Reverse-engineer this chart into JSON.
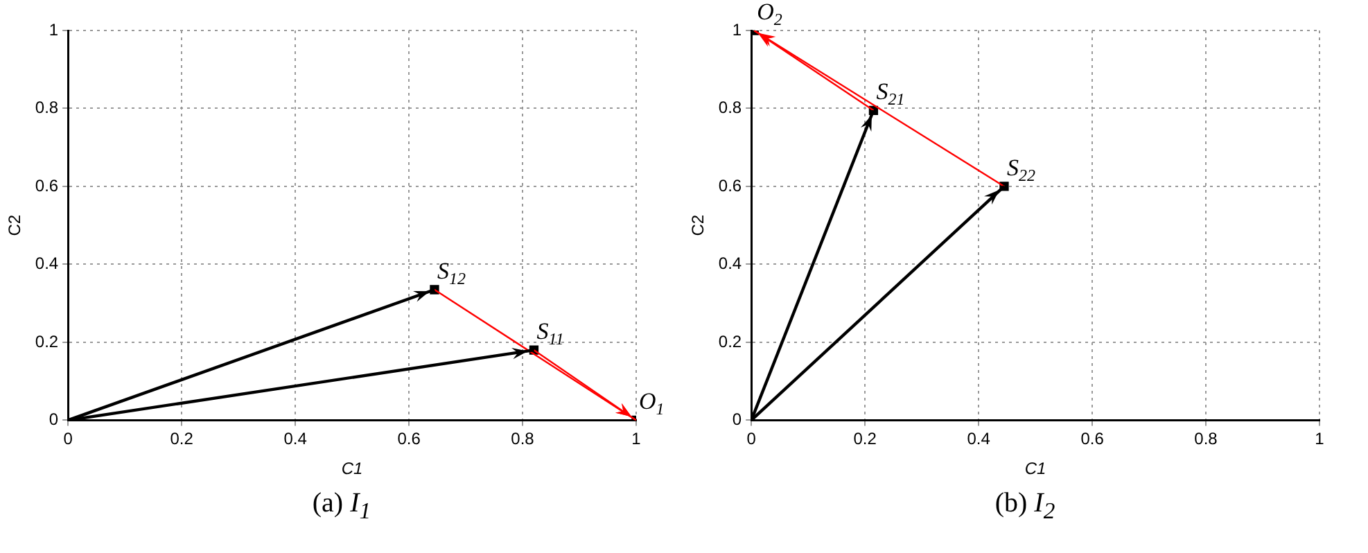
{
  "chart_data": [
    {
      "type": "line",
      "xlabel": "C1",
      "ylabel": "C2",
      "xlim": [
        0,
        1
      ],
      "ylim": [
        0,
        1
      ],
      "xticks": [
        0,
        0.2,
        0.4,
        0.6,
        0.8,
        1
      ],
      "yticks": [
        0,
        0.2,
        0.4,
        0.6,
        0.8,
        1
      ],
      "grid": true,
      "legend": false,
      "line_style": "solid",
      "series": [
        {
          "type": "line",
          "color": "#000000",
          "marker": "none",
          "x": [
            0,
            0.645
          ],
          "values": [
            0,
            0.335
          ]
        },
        {
          "type": "line",
          "color": "#000000",
          "marker": "none",
          "x": [
            0,
            0.82
          ],
          "values": [
            0,
            0.18
          ]
        },
        {
          "type": "line",
          "color": "#ff0000",
          "marker": "none",
          "x": [
            0.645,
            1
          ],
          "values": [
            0.335,
            0
          ]
        },
        {
          "type": "line",
          "color": "#ff0000",
          "marker": "none",
          "x": [
            0.82,
            1
          ],
          "values": [
            0.18,
            0
          ]
        },
        {
          "type": "scatter",
          "color": "#000000",
          "marker": "square",
          "x": [
            0.645,
            0.82,
            1
          ],
          "values": [
            0.335,
            0.18,
            0
          ]
        }
      ],
      "annotations": [
        {
          "text": "S$_{12}$",
          "x": 0.645,
          "y": 0.335
        },
        {
          "text": "S$_{11}$",
          "x": 0.82,
          "y": 0.18
        },
        {
          "text": "O$_{1}$",
          "x": 1,
          "y": 0
        },
        "(a) I$_{1}$"
      ]
    },
    {
      "type": "line",
      "xlabel": "C1",
      "ylabel": "C2",
      "xlim": [
        0,
        1
      ],
      "ylim": [
        0,
        1
      ],
      "xticks": [
        0,
        0.2,
        0.4,
        0.6,
        0.8,
        1
      ],
      "yticks": [
        0,
        0.2,
        0.4,
        0.6,
        0.8,
        1
      ],
      "grid": true,
      "legend": false,
      "line_style": "solid",
      "series": [
        {
          "type": "line",
          "color": "#000000",
          "marker": "none",
          "x": [
            0,
            0.215
          ],
          "values": [
            0,
            0.795
          ]
        },
        {
          "type": "line",
          "color": "#000000",
          "marker": "none",
          "x": [
            0,
            0.445
          ],
          "values": [
            0,
            0.6
          ]
        },
        {
          "type": "line",
          "color": "#ff0000",
          "marker": "none",
          "x": [
            0.445,
            0.005
          ],
          "values": [
            0.6,
            1
          ]
        },
        {
          "type": "line",
          "color": "#ff0000",
          "marker": "none",
          "x": [
            0.215,
            0.005
          ],
          "values": [
            0.795,
            1
          ]
        },
        {
          "type": "scatter",
          "color": "#000000",
          "marker": "square",
          "x": [
            0.005,
            0.215,
            0.445
          ],
          "values": [
            1,
            0.795,
            0.6
          ]
        }
      ],
      "annotations": [
        {
          "text": "O$_{2}$",
          "x": 0.005,
          "y": 1
        },
        {
          "text": "S$_{21}$",
          "x": 0.215,
          "y": 0.795
        },
        {
          "text": "S$_{22}$",
          "x": 0.445,
          "y": 0.6
        },
        "(b) I$_{2}$"
      ]
    }
  ]
}
